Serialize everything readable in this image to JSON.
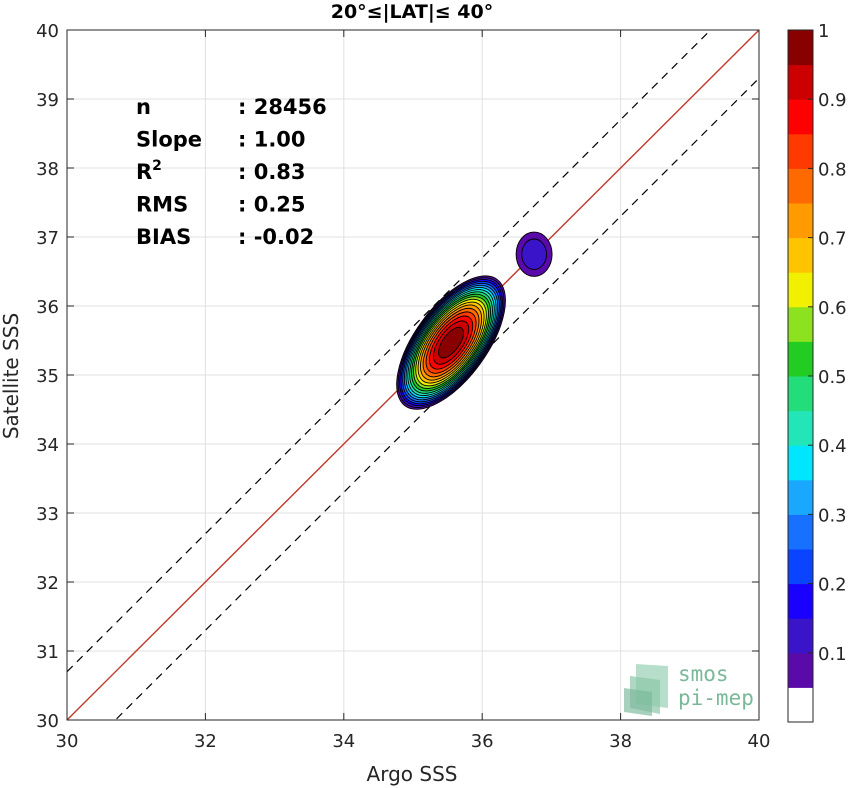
{
  "chart_data": {
    "type": "heatmap",
    "title": "20°≤|LAT|≤ 40°",
    "xlabel": "Argo SSS",
    "ylabel": "Satellite SSS",
    "xlim": [
      30,
      40
    ],
    "ylim": [
      30,
      40
    ],
    "xticks": [
      "30",
      "32",
      "34",
      "36",
      "38",
      "40"
    ],
    "yticks": [
      "30",
      "31",
      "32",
      "33",
      "34",
      "35",
      "36",
      "37",
      "38",
      "39",
      "40"
    ],
    "grid": true,
    "reference_lines": [
      {
        "kind": "identity",
        "slope": 1,
        "intercept": 0,
        "color": "#c0392b",
        "style": "solid"
      },
      {
        "kind": "offset",
        "slope": 1,
        "intercept": 0.7,
        "color": "#000000",
        "style": "dashed"
      },
      {
        "kind": "offset",
        "slope": 1,
        "intercept": -0.7,
        "color": "#000000",
        "style": "dashed"
      }
    ],
    "density_peaks": [
      {
        "x": 35.55,
        "y": 35.47,
        "max_level": 1.0,
        "orientation_deg": 54,
        "outer_semi_major": 1.13,
        "outer_semi_minor": 0.52
      },
      {
        "x": 36.75,
        "y": 36.75,
        "max_level": 0.1,
        "orientation_deg": 90,
        "outer_semi_major": 0.32,
        "outer_semi_minor": 0.26
      }
    ],
    "stats": [
      {
        "label": "n",
        "value": ": 28456"
      },
      {
        "label": "Slope",
        "value": ": 1.00"
      },
      {
        "label": "R",
        "sup": "2",
        "value": ": 0.83"
      },
      {
        "label": "RMS",
        "value": ": 0.25"
      },
      {
        "label": "BIAS",
        "value": ": -0.02"
      }
    ],
    "colorbar": {
      "range": [
        0,
        1
      ],
      "ticks": [
        "0.1",
        "0.2",
        "0.3",
        "0.4",
        "0.5",
        "0.6",
        "0.7",
        "0.8",
        "0.9",
        "1"
      ],
      "colors": [
        "#ffffff",
        "#5a0aa8",
        "#3a14c8",
        "#1a00ff",
        "#0a44ff",
        "#1870ff",
        "#1aa8ff",
        "#00e6ff",
        "#22e6b8",
        "#22dd7a",
        "#22cc22",
        "#8ce21e",
        "#f0f000",
        "#ffc400",
        "#ff9a00",
        "#ff6a00",
        "#ff3a00",
        "#ff0000",
        "#cc0000",
        "#880000"
      ]
    }
  },
  "watermark": {
    "line1": "smos",
    "line2": "pi-mep"
  }
}
